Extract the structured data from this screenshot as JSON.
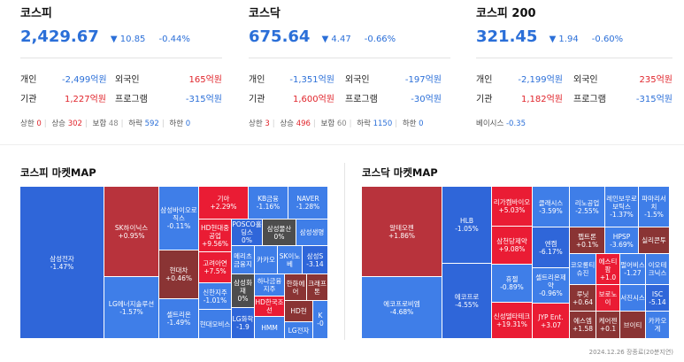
{
  "panels": [
    {
      "title": "코스피",
      "value": "2,429.67",
      "change": "▼ 10.85",
      "pct": "-0.44%",
      "flows": [
        {
          "label": "개인",
          "value": "-2,499억원",
          "label2": "외국인",
          "value2": "165억원"
        },
        {
          "label": "기관",
          "value": "1,227억원",
          "label2": "프로그램",
          "value2": "-315억원"
        }
      ],
      "breadth": {
        "limit_up_label": "상한",
        "limit_up": "0",
        "up_label": "상승",
        "up": "302",
        "flat_label": "보합",
        "flat": "48",
        "down_label": "하락",
        "down": "592",
        "limit_down_label": "하한",
        "limit_down": "0"
      }
    },
    {
      "title": "코스닥",
      "value": "675.64",
      "change": "▼ 4.47",
      "pct": "-0.66%",
      "flows": [
        {
          "label": "개인",
          "value": "-1,351억원",
          "label2": "외국인",
          "value2": "-197억원"
        },
        {
          "label": "기관",
          "value": "1,600억원",
          "label2": "프로그램",
          "value2": "-30억원"
        }
      ],
      "breadth": {
        "limit_up_label": "상한",
        "limit_up": "3",
        "up_label": "상승",
        "up": "496",
        "flat_label": "보합",
        "flat": "60",
        "down_label": "하락",
        "down": "1150",
        "limit_down_label": "하한",
        "limit_down": "0"
      }
    },
    {
      "title": "코스피 200",
      "value": "321.45",
      "change": "▼ 1.94",
      "pct": "-0.60%",
      "flows": [
        {
          "label": "개인",
          "value": "-2,199억원",
          "label2": "외국인",
          "value2": "235억원"
        },
        {
          "label": "기관",
          "value": "1,182억원",
          "label2": "프로그램",
          "value2": "-315억원"
        }
      ],
      "basis_label": "베이시스",
      "basis": "-0.35"
    }
  ],
  "maps": {
    "kospi_title": "코스피 마켓MAP",
    "kosdaq_title": "코스닥 마켓MAP"
  },
  "kospi_tiles": [
    {
      "name": "삼성전자",
      "chg": "-1.47%"
    },
    {
      "name": "SK하이닉스",
      "chg": "+0.95%"
    },
    {
      "name": "LG에너지솔루션",
      "chg": "-1.57%"
    },
    {
      "name": "삼성바이오로직스",
      "chg": "-0.11%"
    },
    {
      "name": "현대차",
      "chg": "+0.46%"
    },
    {
      "name": "셀트리온",
      "chg": "-1.49%"
    },
    {
      "name": "기아",
      "chg": "+2.29%"
    },
    {
      "name": "KB금융",
      "chg": "-1.16%"
    },
    {
      "name": "NAVER",
      "chg": "-1.28%"
    },
    {
      "name": "HD현대중공업",
      "chg": "+9.56%"
    },
    {
      "name": "POSCO홀딩스",
      "chg": "0%"
    },
    {
      "name": "삼성물산",
      "chg": "0%"
    },
    {
      "name": "삼성생명",
      "chg": ""
    },
    {
      "name": "고려아연",
      "chg": "+7.5%"
    },
    {
      "name": "메리츠금융지",
      "chg": ""
    },
    {
      "name": "카카오",
      "chg": ""
    },
    {
      "name": "SK이노베",
      "chg": ""
    },
    {
      "name": "삼성S",
      "chg": "-3.14"
    },
    {
      "name": "신한지주",
      "chg": "-1.01%"
    },
    {
      "name": "삼성화재",
      "chg": "0%"
    },
    {
      "name": "하나금융지주",
      "chg": ""
    },
    {
      "name": "한화에어",
      "chg": ""
    },
    {
      "name": "크래프톤",
      "chg": ""
    },
    {
      "name": "HD한국조선",
      "chg": ""
    },
    {
      "name": "현대모비스",
      "chg": ""
    },
    {
      "name": "LG화학",
      "chg": "-1.9"
    },
    {
      "name": "HMM",
      "chg": ""
    },
    {
      "name": "HD현",
      "chg": ""
    },
    {
      "name": "LG전자",
      "chg": ""
    },
    {
      "name": "K",
      "chg": "-0"
    }
  ],
  "kosdaq_tiles": [
    {
      "name": "알테오젠",
      "chg": "+1.86%"
    },
    {
      "name": "에코프로비엠",
      "chg": "-4.68%"
    },
    {
      "name": "HLB",
      "chg": "-1.05%"
    },
    {
      "name": "에코프로",
      "chg": "-4.55%"
    },
    {
      "name": "리가켐바이오",
      "chg": "+5.03%"
    },
    {
      "name": "삼천당제약",
      "chg": "+9.08%"
    },
    {
      "name": "휴젤",
      "chg": "-0.89%"
    },
    {
      "name": "신성델타테크",
      "chg": "+19.31%"
    },
    {
      "name": "클래시스",
      "chg": "-3.59%"
    },
    {
      "name": "엔켐",
      "chg": "-6.17%"
    },
    {
      "name": "셀트리온제약",
      "chg": "-0.96%"
    },
    {
      "name": "JYP Ent.",
      "chg": "+3.07"
    },
    {
      "name": "리노공업",
      "chg": "-2.55%"
    },
    {
      "name": "펩트론",
      "chg": "+0.1%"
    },
    {
      "name": "코오롱티슈진",
      "chg": ""
    },
    {
      "name": "루닛",
      "chg": "+0.64"
    },
    {
      "name": "에스엠",
      "chg": "+1.58"
    },
    {
      "name": "레인보우로보틱스",
      "chg": "-1.37%"
    },
    {
      "name": "HPSP",
      "chg": "-3.69%"
    },
    {
      "name": "에스티팜",
      "chg": "+1.0"
    },
    {
      "name": "펄어비스",
      "chg": "-1.27"
    },
    {
      "name": "보로노이",
      "chg": ""
    },
    {
      "name": "케어젠",
      "chg": "+0.1"
    },
    {
      "name": "파마리서치",
      "chg": "-1.5%"
    },
    {
      "name": "실리콘투",
      "chg": ""
    },
    {
      "name": "이오테크닉스",
      "chg": ""
    },
    {
      "name": "ISC",
      "chg": "-5.14"
    },
    {
      "name": "서진시스",
      "chg": ""
    },
    {
      "name": "브이티",
      "chg": ""
    },
    {
      "name": "카카오게",
      "chg": ""
    }
  ],
  "footer": "2024.12.26 장종료(20분지연)"
}
